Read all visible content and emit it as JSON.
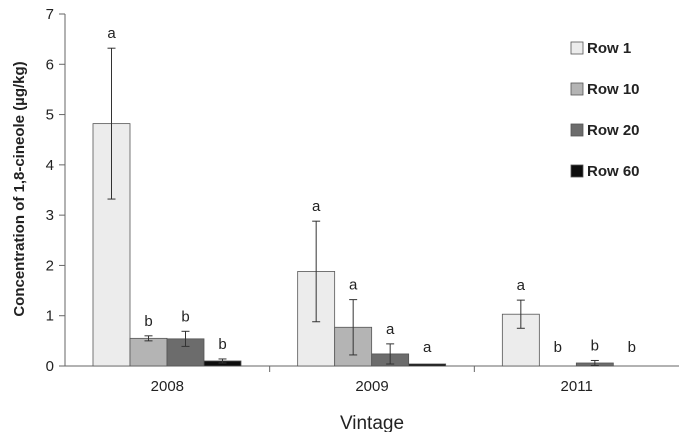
{
  "chart_data": {
    "type": "bar",
    "title": "",
    "xlabel": "Vintage",
    "ylabel": "Concentration of 1,8-cineole (µg/kg)",
    "ylim": [
      0,
      7
    ],
    "yticks": [
      "0",
      "1",
      "2",
      "3",
      "4",
      "5",
      "6",
      "7"
    ],
    "categories": [
      "2008",
      "2009",
      "2011"
    ],
    "legend_position": "top-right",
    "grid": false,
    "series": [
      {
        "name": "Row 1",
        "color": "#ececec",
        "values": [
          4.82,
          1.88,
          1.03
        ],
        "errors": [
          1.5,
          1.0,
          0.28
        ],
        "labels": [
          "a",
          "a",
          "a"
        ]
      },
      {
        "name": "Row 10",
        "color": "#b4b4b4",
        "values": [
          0.55,
          0.77,
          0
        ],
        "errors": [
          0.05,
          0.55,
          0
        ],
        "labels": [
          "b",
          "a",
          "b"
        ]
      },
      {
        "name": "Row 20",
        "color": "#6c6c6c",
        "values": [
          0.54,
          0.24,
          0.06
        ],
        "errors": [
          0.15,
          0.2,
          0.05
        ],
        "labels": [
          "b",
          "a",
          "b"
        ]
      },
      {
        "name": "Row 60",
        "color": "#0d0d0d",
        "values": [
          0.1,
          0.04,
          0
        ],
        "errors": [
          0.04,
          0,
          0
        ],
        "labels": [
          "b",
          "a",
          "b"
        ]
      }
    ]
  }
}
